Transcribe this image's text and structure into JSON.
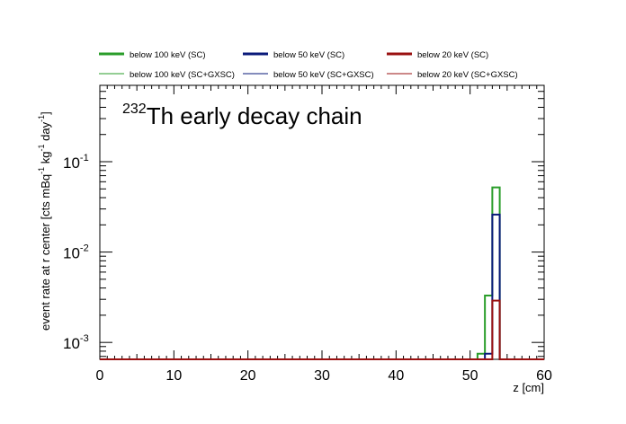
{
  "chart_data": {
    "type": "histogram-step",
    "title": {
      "superscript": "232",
      "main": "Th early decay chain"
    },
    "xlabel": "z [cm]",
    "ylabel": {
      "prefix": "event rate at r center [cts mBq",
      "sup1": "-1",
      "mid1": " kg",
      "sup2": "-1",
      "mid2": " day",
      "sup3": "-1",
      "suffix": "]"
    },
    "xlim": [
      0,
      60
    ],
    "ylim": [
      0.00065,
      0.7
    ],
    "yscale": "log",
    "x_ticks": [
      "0",
      "10",
      "20",
      "30",
      "40",
      "50",
      "60"
    ],
    "y_ticks": [
      {
        "base": "10",
        "exp": "-1",
        "value": 0.1
      },
      {
        "base": "10",
        "exp": "-2",
        "value": 0.01
      },
      {
        "base": "10",
        "exp": "-3",
        "value": 0.001
      }
    ],
    "bin_width": 1,
    "floor": 0.00065,
    "legend_position": "top",
    "series": [
      {
        "name": "below 100 keV (SC)",
        "color": "#2a9d2a",
        "style": "thick",
        "bins": [
          {
            "x": 51,
            "y": 0.00075
          },
          {
            "x": 52,
            "y": 0.0033
          },
          {
            "x": 53,
            "y": 0.052
          }
        ]
      },
      {
        "name": "below 50 keV (SC)",
        "color": "#0a1a7a",
        "style": "thick",
        "bins": [
          {
            "x": 52,
            "y": 0.00075
          },
          {
            "x": 53,
            "y": 0.026
          }
        ]
      },
      {
        "name": "below 20 keV (SC)",
        "color": "#9a1010",
        "style": "thick",
        "bins": [
          {
            "x": 53,
            "y": 0.0029
          }
        ]
      },
      {
        "name": "below 100 keV (SC+GXSC)",
        "color": "#2a9d2a",
        "style": "thin",
        "bins": []
      },
      {
        "name": "below 50 keV (SC+GXSC)",
        "color": "#0a1a7a",
        "style": "thin",
        "bins": []
      },
      {
        "name": "below 20 keV (SC+GXSC)",
        "color": "#9a1010",
        "style": "thin",
        "bins": []
      }
    ]
  }
}
